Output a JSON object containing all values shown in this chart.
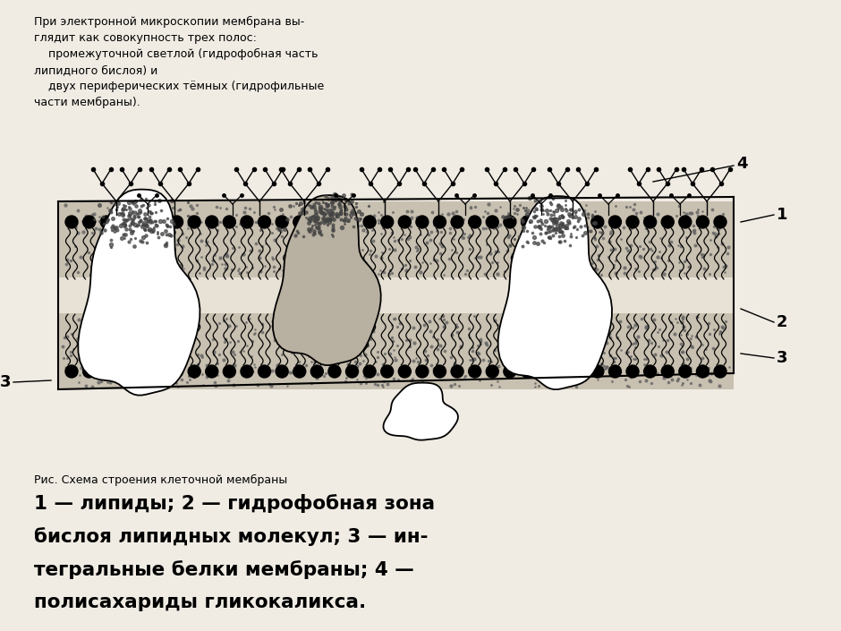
{
  "bg_color": "#f0ece4",
  "top_text_line1": "При электронной микроскопии мембрана вы-",
  "top_text_line2": "глядит как совокупность трех полос:",
  "top_text_line3": "    промежуточной светлой (гидрофобная часть",
  "top_text_line4": "липидного бислоя) и",
  "top_text_line5": "    двух периферических тёмных (гидрофильные",
  "top_text_line6": "части мембраны).",
  "caption_small": "Рис. Схема строения клеточной мембраны",
  "caption_large_line1": "1 — липиды; 2 — гидрофобная зона",
  "caption_large_line2": "бислоя липидных молекул; 3 — ин-",
  "caption_large_line3": "тегральные белки мембраны; 4 —",
  "caption_large_line4": "полисахариды гликокаликса.",
  "label_1": "1",
  "label_2": "2",
  "label_3": "3",
  "label_4": "4"
}
